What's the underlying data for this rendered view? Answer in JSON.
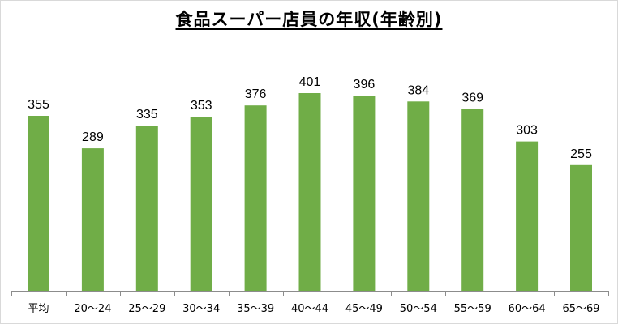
{
  "chart_data": {
    "type": "bar",
    "title": "食品スーパー店員の年収(年齢別)",
    "categories": [
      "平均",
      "20～24",
      "25～29",
      "30～34",
      "35～39",
      "40～44",
      "45～49",
      "50～54",
      "55～59",
      "60～64",
      "65～69"
    ],
    "values": [
      355,
      289,
      335,
      353,
      376,
      401,
      396,
      384,
      369,
      303,
      255
    ],
    "xlabel": "",
    "ylabel": "",
    "ylim": [
      0,
      420
    ],
    "grid": false,
    "legend": "none",
    "bar_color": "#70ad47",
    "axis_color": "#8c8c8c"
  }
}
